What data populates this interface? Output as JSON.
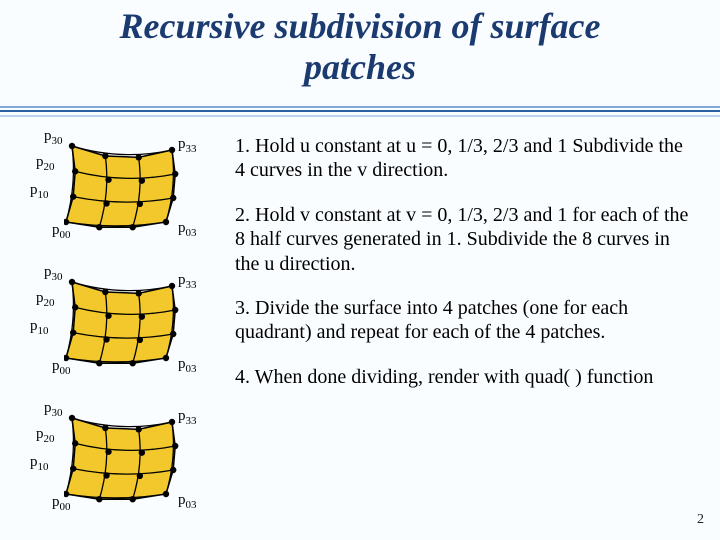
{
  "title_line1": "Recursive subdivision of surface",
  "title_line2": "patches",
  "page_number": "2",
  "steps": [
    "1.   Hold u constant at u = 0, 1/3, 2/3 and 1 Subdivide the 4 curves in the v direction.",
    "2.   Hold v constant at v = 0, 1/3, 2/3 and 1 for each of the 8 half curves generated in 1. Subdivide the 8 curves in the u direction.",
    "3.   Divide the surface into 4 patches (one for each quadrant) and repeat for each of the 4 patches.",
    "4. When done dividing, render with quad( ) function"
  ],
  "patch_labels": {
    "p30": "p",
    "p30_sub": "30",
    "p33": "p",
    "p33_sub": "33",
    "p20": "p",
    "p20_sub": "20",
    "p10": "p",
    "p10_sub": "10",
    "p00": "p",
    "p00_sub": "00",
    "p03": "p",
    "p03_sub": "03"
  },
  "patch_style": {
    "fill": "#f2c82c",
    "dot": "#000000",
    "stroke": "#000000",
    "highlight_stroke": "#5aa0d8"
  },
  "patch_variants": [
    {
      "highlight_horizontal": false,
      "highlight_vertical": false
    },
    {
      "highlight_horizontal": false,
      "highlight_vertical": false
    },
    {
      "highlight_horizontal": false,
      "highlight_vertical": false
    }
  ]
}
